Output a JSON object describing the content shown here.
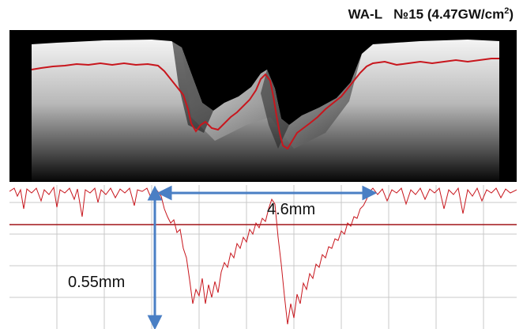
{
  "title": {
    "label": "WA-L",
    "sample": "№15",
    "value": "(4.47GW/cm",
    "exponent": "2",
    "suffix": ")"
  },
  "measurements": {
    "width": "4.6mm",
    "depth": "0.55mm"
  },
  "colors": {
    "profile_line": "#c8161d",
    "arrow": "#4a7fc4",
    "grid": "#c8c8c8",
    "scan_background": "#000000"
  }
}
